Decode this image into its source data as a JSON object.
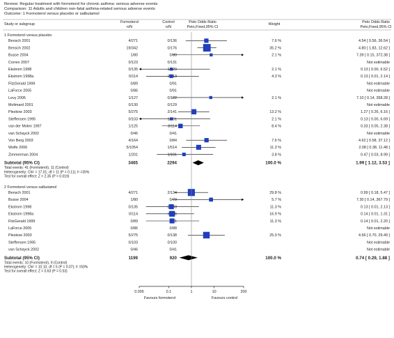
{
  "header": {
    "review_label": "Review:",
    "review": "Regular treatment with formoterol for chronic asthma: serious adverse events",
    "comparison_label": "Comparison:",
    "comparison": "11 Adults and children non-fatal asthma-related serious adverse events",
    "outcome_label": "Outcome:",
    "outcome": "1 Formoterol versus placebo or salbutamol"
  },
  "columns": {
    "study": "Study or subgroup",
    "treatment": "Formoterol",
    "treatment_sub": "n/N",
    "control": "Control",
    "control_sub": "n/N",
    "ratio": "Peto Odds Ratio",
    "ratio_sub": "Peto,Fixed,95% CI",
    "weight": "Weight",
    "ratio2": "Peto Odds Ratio",
    "ratio2_sub": "Peto,Fixed,95% CI"
  },
  "chart_data": {
    "type": "forest",
    "x_scale": "log",
    "xlim": [
      0.005,
      200
    ],
    "x_ticks": [
      "0.005",
      "0.1",
      "1",
      "10",
      "200"
    ],
    "x_tick_values": [
      0.005,
      0.1,
      1,
      10,
      200
    ],
    "favours_left": "Favours formoterol",
    "favours_right": "Favours control",
    "groups": [
      {
        "title": "1 Formoterol versus placebo",
        "studies": [
          {
            "name": "Bensch 2001",
            "t": "4/271",
            "c": "0/136",
            "weight": "7.6 %",
            "ci_text": "4.54 [ 0.56, 36.54 ]",
            "or": 4.54,
            "lo": 0.56,
            "hi": 36.54,
            "w": 7.6
          },
          {
            "name": "Bensch 2002",
            "t": "19/342",
            "c": "0/176",
            "weight": "35.2 %",
            "ci_text": "4.80 [ 1.83, 12.62 ]",
            "or": 4.8,
            "lo": 1.83,
            "hi": 12.62,
            "w": 35.2
          },
          {
            "name": "Busse 2004",
            "t": "1/80",
            "c": "0/80",
            "weight": "2.1 %",
            "ci_text": "7.39 [ 0.15, 372.38 ]",
            "or": 7.39,
            "lo": 0.15,
            "hi": 372.38,
            "w": 2.1
          },
          {
            "name": "Corren 2007",
            "t": "0/123",
            "c": "0/131",
            "weight": "",
            "ci_text": "Not estimable",
            "or": null
          },
          {
            "name": "Ekstrom 1998",
            "t": "0/135",
            "c": "1/129",
            "weight": "2.1 %",
            "ci_text": "0.13 [ 0.00, 6.52 ]",
            "or": 0.13,
            "lo": 0.0026,
            "hi": 6.52,
            "w": 2.1
          },
          {
            "name": "Ekstrom 1998a",
            "t": "0/114",
            "c": "2/113",
            "weight": "4.3 %",
            "ci_text": "0.13 [ 0.01, 2.14 ]",
            "or": 0.13,
            "lo": 0.01,
            "hi": 2.14,
            "w": 4.3
          },
          {
            "name": "FitzGerald 1999",
            "t": "0/89",
            "c": "0/91",
            "weight": "",
            "ci_text": "Not estimable",
            "or": null
          },
          {
            "name": "LaForce 2005",
            "t": "0/86",
            "c": "0/91",
            "weight": "",
            "ci_text": "Not estimable",
            "or": null
          },
          {
            "name": "Levy 2005",
            "t": "1/127",
            "c": "0/122",
            "weight": "2.1 %",
            "ci_text": "7.10 [ 0.14, 358.28 ]",
            "or": 7.1,
            "lo": 0.14,
            "hi": 358.28,
            "w": 2.1
          },
          {
            "name": "Molimard 2001",
            "t": "0/130",
            "c": "0/129",
            "weight": "",
            "ci_text": "Not estimable",
            "or": null
          },
          {
            "name": "Pleskow 2003",
            "t": "5/275",
            "c": "2/141",
            "weight": "13.2 %",
            "ci_text": "1.27 [ 0.26, 6.16 ]",
            "or": 1.27,
            "lo": 0.26,
            "hi": 6.16,
            "w": 13.2
          },
          {
            "name": "Steffensen 1995",
            "t": "0/103",
            "c": "1/101",
            "weight": "2.1 %",
            "ci_text": "0.13 [ 0.00, 6.69 ]",
            "or": 0.13,
            "lo": 0.0026,
            "hi": 6.69,
            "w": 2.1
          },
          {
            "name": "van der Molen 1997",
            "t": "1/125",
            "c": "3/114",
            "weight": "8.4 %",
            "ci_text": "0.33 [ 0.05, 2.38 ]",
            "or": 0.33,
            "lo": 0.05,
            "hi": 2.38,
            "w": 8.4
          },
          {
            "name": "van Schayck 2002",
            "t": "0/46",
            "c": "0/41",
            "weight": "",
            "ci_text": "Not estimable",
            "or": null
          },
          {
            "name": "Von Berg 2003",
            "t": "4/164",
            "c": "0/84",
            "weight": "7.6 %",
            "ci_text": "4.62 [ 0.58, 37.12 ]",
            "or": 4.62,
            "lo": 0.58,
            "hi": 37.12,
            "w": 7.6
          },
          {
            "name": "Wolfe 2006",
            "t": "5/1054",
            "c": "1/514",
            "weight": "11.3 %",
            "ci_text": "2.08 [ 0.38, 11.48 ]",
            "or": 2.08,
            "lo": 0.38,
            "hi": 11.48,
            "w": 11.3
          },
          {
            "name": "Zimmerman 2004",
            "t": "1/201",
            "c": "1/101",
            "weight": "3.8 %",
            "ci_text": "0.47 [ 0.03, 8.99 ]",
            "or": 0.47,
            "lo": 0.03,
            "hi": 8.99,
            "w": 3.8
          }
        ],
        "subtotal": {
          "label": "Subtotal (95% CI)",
          "t": "3465",
          "c": "2294",
          "weight": "100.0 %",
          "ci_text": "1.99 [ 1.12, 3.53 ]",
          "or": 1.99,
          "lo": 1.12,
          "hi": 3.53
        },
        "notes": [
          "Total events: 41 (Formoterol), 11 (Control)",
          "Heterogeneity: Chi² = 17.01, df = 11 (P = 0.11); I² =35%",
          "Test for overall effect: Z = 2.35 (P = 0.019)"
        ]
      },
      {
        "title": "2 Formoterol versus salbutamol",
        "studies": [
          {
            "name": "Bensch 2001",
            "t": "4/271",
            "c": "2/134",
            "weight": "29.8 %",
            "ci_text": "0.99 [ 0.18, 5.47 ]",
            "or": 0.99,
            "lo": 0.18,
            "hi": 5.47,
            "w": 29.8
          },
          {
            "name": "Busse 2004",
            "t": "1/80",
            "c": "0/79",
            "weight": "5.7 %",
            "ci_text": "7.30 [ 0.14, 367.79 ]",
            "or": 7.3,
            "lo": 0.14,
            "hi": 367.79,
            "w": 5.7
          },
          {
            "name": "Ekstrom 1998",
            "t": "0/135",
            "c": "2/133",
            "weight": "11.3 %",
            "ci_text": "0.13 [ 0.01, 2.13 ]",
            "or": 0.13,
            "lo": 0.01,
            "hi": 2.13,
            "w": 11.3
          },
          {
            "name": "Ekstrom 1998a",
            "t": "0/114",
            "c": "3/116",
            "weight": "16.9 %",
            "ci_text": "0.14 [ 0.01, 1.31 ]",
            "or": 0.14,
            "lo": 0.01,
            "hi": 1.31,
            "w": 16.9
          },
          {
            "name": "FitzGerald 1999",
            "t": "0/89",
            "c": "2/91",
            "weight": "11.3 %",
            "ci_text": "0.14 [ 0.01, 2.20 ]",
            "or": 0.14,
            "lo": 0.01,
            "hi": 2.2,
            "w": 11.3
          },
          {
            "name": "LaForce 2005",
            "t": "0/86",
            "c": "0/88",
            "weight": "",
            "ci_text": "Not estimable",
            "or": null
          },
          {
            "name": "Pleskow 2003",
            "t": "5/275",
            "c": "0/138",
            "weight": "25.0 %",
            "ci_text": "4.56 [ 0.70, 29.49 ]",
            "or": 4.56,
            "lo": 0.7,
            "hi": 29.49,
            "w": 25.0
          },
          {
            "name": "Steffensen 1995",
            "t": "0/103",
            "c": "0/100",
            "weight": "",
            "ci_text": "Not estimable",
            "or": null
          },
          {
            "name": "van Schayck 2002",
            "t": "0/46",
            "c": "0/41",
            "weight": "",
            "ci_text": "Not estimable",
            "or": null
          }
        ],
        "subtotal": {
          "label": "Subtotal (95% CI)",
          "t": "1199",
          "c": "920",
          "weight": "100.0 %",
          "ci_text": "0.74 [ 0.29, 1.88 ]",
          "or": 0.74,
          "lo": 0.29,
          "hi": 1.88
        },
        "notes": [
          "Total events: 10 (Formoterol), 9 (Control)",
          "Heterogeneity: Chi² = 10.10, df = 5 (P = 0.07); I² =50%",
          "Test for overall effect: Z = 0.63 (P = 0.53)"
        ]
      }
    ]
  },
  "colors": {
    "marker": "#1f3fbf",
    "diamond": "#000000",
    "line": "#000000",
    "rule": "#8a8a8a"
  }
}
